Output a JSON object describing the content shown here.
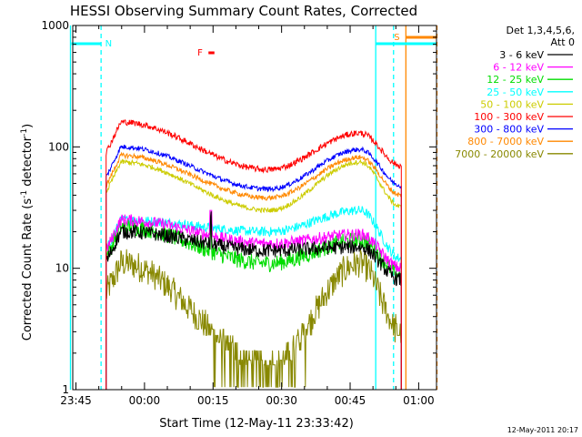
{
  "chart_data": {
    "type": "line",
    "title": "HESSI Observing Summary Count Rates, Corrected",
    "xlabel": "Start Time (12-May-11 23:33:42)",
    "ylabel_main": "Corrected Count Rate (s",
    "ylabel_sup1": "-1",
    "ylabel_mid": " detector",
    "ylabel_sup2": "-1",
    "ylabel_end": ")",
    "yscale": "log",
    "ylim": [
      1,
      1000
    ],
    "xlim_minutes": [
      -15.7,
      63.9
    ],
    "x_ticks": [
      {
        "label": "23:45",
        "value": -15
      },
      {
        "label": "00:00",
        "value": 0
      },
      {
        "label": "00:15",
        "value": 15
      },
      {
        "label": "00:30",
        "value": 30
      },
      {
        "label": "00:45",
        "value": 45
      },
      {
        "label": "01:00",
        "value": 60
      }
    ],
    "y_ticks": [
      {
        "label": "1",
        "value": 1
      },
      {
        "label": "10",
        "value": 10
      },
      {
        "label": "100",
        "value": 100
      },
      {
        "label": "1000",
        "value": 1000
      }
    ],
    "legend_title_1": "Det 1,3,4,5,6,",
    "legend_title_2": "Att 0",
    "legend_position": "right",
    "data_start": -8.4,
    "data_end": 56.2,
    "series": [
      {
        "name": "3 - 6 keV",
        "color": "#000000",
        "start": 20,
        "mid": 14,
        "peak": 15,
        "end": 8,
        "noise": 0.06
      },
      {
        "name": "6 - 12 keV",
        "color": "#ff00ff",
        "start": 25,
        "mid": 16,
        "peak": 19,
        "end": 10,
        "noise": 0.05
      },
      {
        "name": "12 - 25 keV",
        "color": "#00dd00",
        "start": 22,
        "mid": 11,
        "peak": 17,
        "end": 9,
        "noise": 0.07
      },
      {
        "name": "25 - 50 keV",
        "color": "#00ffff",
        "start": 25,
        "mid": 20,
        "peak": 30,
        "end": 12,
        "noise": 0.04
      },
      {
        "name": "50 - 100 keV",
        "color": "#cccc00",
        "start": 75,
        "mid": 30,
        "peak": 75,
        "end": 32,
        "noise": 0.02
      },
      {
        "name": "100 - 300 keV",
        "color": "#ff0000",
        "start": 160,
        "mid": 65,
        "peak": 130,
        "end": 70,
        "noise": 0.025
      },
      {
        "name": "300 - 800 keV",
        "color": "#0000ff",
        "start": 100,
        "mid": 45,
        "peak": 95,
        "end": 48,
        "noise": 0.02
      },
      {
        "name": "800 - 7000 keV",
        "color": "#ff8800",
        "start": 85,
        "mid": 38,
        "peak": 82,
        "end": 40,
        "noise": 0.02
      },
      {
        "name": "7000 - 20000 keV",
        "color": "#888800",
        "start": 11,
        "mid": 1.6,
        "peak": 11,
        "end": 3,
        "noise": 0.12
      }
    ],
    "annotations": {
      "night_label": "N",
      "saa_label": "S",
      "flare_label": "F",
      "night_color": "#00ffff",
      "saa_color": "#ff8800",
      "flare_color": "#ff0000",
      "night_lines": [
        -16.2,
        -9.5,
        50.6,
        54.5
      ],
      "saa_lines": [
        57.2,
        64.0
      ],
      "night_bars": [
        [
          -16.0,
          -9.5
        ],
        [
          50.6,
          64.0
        ]
      ],
      "saa_bar": [
        57.2,
        64.0
      ],
      "flare_bar": [
        14.0,
        15.3
      ],
      "flare_spike": 14.5
    },
    "footer_date": "12-May-2011 20:17"
  }
}
